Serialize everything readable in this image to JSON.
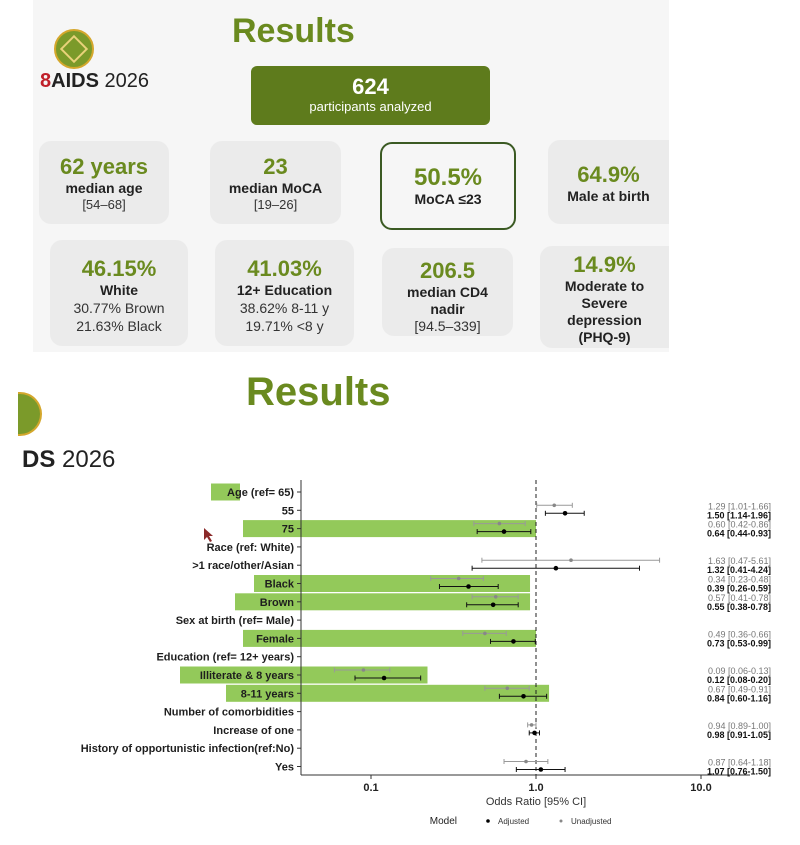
{
  "slide1": {
    "title": "Results",
    "brand": {
      "ribbon": "🎗",
      "name": "AIDS",
      "year": "2026"
    },
    "banner": {
      "value": "624",
      "label": "participants analyzed"
    },
    "cards": [
      {
        "id": "median-age",
        "value": "62 years",
        "label": "median age",
        "detail": "[54–68]"
      },
      {
        "id": "median-moca",
        "value": "23",
        "label": "median MoCA",
        "detail": "[19–26]"
      },
      {
        "id": "moca-le-23",
        "value": "50.5%",
        "label": "MoCA ≤23",
        "detail": ""
      },
      {
        "id": "male-at-birth",
        "value": "64.9%",
        "label": "Male at birth",
        "detail": ""
      },
      {
        "id": "white",
        "value": "46.15%",
        "label": "White",
        "detail": "30.77% Brown",
        "detail2": "21.63% Black"
      },
      {
        "id": "education",
        "value": "41.03%",
        "label": "12+ Education",
        "detail": "38.62% 8-11 y",
        "detail2": "19.71% <8 y"
      },
      {
        "id": "cd4-nadir",
        "value": "206.5",
        "label": "median CD4",
        "label2": "nadir",
        "detail": "[94.5–339]"
      },
      {
        "id": "depression",
        "value": "14.9%",
        "label": "Moderate to",
        "label2": "Severe",
        "label3": "depression",
        "label4": "(PHQ-9)"
      }
    ]
  },
  "slide2": {
    "title": "Results",
    "brand": {
      "name": "DS",
      "year": "2026"
    }
  },
  "chart_data": {
    "type": "scatter",
    "subtype": "forest-plot",
    "xlabel": "Odds Ratio [95% CI]",
    "xscale": "log",
    "xticks": [
      "0.1",
      "1.0",
      "10.0"
    ],
    "xlim": [
      0.035,
      14
    ],
    "reference_line": 1.0,
    "legend": {
      "title": "Model",
      "items": [
        "Adjusted",
        "Unadjusted"
      ],
      "position": "bottom"
    },
    "highlight_color": "#93c95a",
    "rows": [
      {
        "label": "Age (ref= 65)",
        "header": true,
        "highlight": true
      },
      {
        "label": "55",
        "unadjusted": {
          "or": 1.29,
          "lo": 1.01,
          "hi": 1.66,
          "text": "1.29 [1.01-1.66]"
        },
        "adjusted": {
          "or": 1.5,
          "lo": 1.14,
          "hi": 1.96,
          "text": "1.50 [1.14-1.96]"
        }
      },
      {
        "label": "75",
        "highlight": true,
        "unadjusted": {
          "or": 0.6,
          "lo": 0.42,
          "hi": 0.86,
          "text": "0.60 [0.42-0.86]"
        },
        "adjusted": {
          "or": 0.64,
          "lo": 0.44,
          "hi": 0.93,
          "text": "0.64 [0.44-0.93]"
        }
      },
      {
        "label": "Race (ref: White)",
        "header": true
      },
      {
        "label": ">1 race/other/Asian",
        "unadjusted": {
          "or": 1.63,
          "lo": 0.47,
          "hi": 5.61,
          "text": "1.63 [0.47-5.61]"
        },
        "adjusted": {
          "or": 1.32,
          "lo": 0.41,
          "hi": 4.24,
          "text": "1.32 [0.41-4.24]"
        }
      },
      {
        "label": "Black",
        "highlight": true,
        "unadjusted": {
          "or": 0.34,
          "lo": 0.23,
          "hi": 0.48,
          "text": "0.34 [0.23-0.48]"
        },
        "adjusted": {
          "or": 0.39,
          "lo": 0.26,
          "hi": 0.59,
          "text": "0.39 [0.26-0.59]"
        }
      },
      {
        "label": "Brown",
        "highlight": true,
        "unadjusted": {
          "or": 0.57,
          "lo": 0.41,
          "hi": 0.78,
          "text": "0.57 [0.41-0.78]"
        },
        "adjusted": {
          "or": 0.55,
          "lo": 0.38,
          "hi": 0.78,
          "text": "0.55 [0.38-0.78]"
        }
      },
      {
        "label": "Sex at birth (ref= Male)",
        "header": true
      },
      {
        "label": "Female",
        "highlight": true,
        "unadjusted": {
          "or": 0.49,
          "lo": 0.36,
          "hi": 0.66,
          "text": "0.49 [0.36-0.66]"
        },
        "adjusted": {
          "or": 0.73,
          "lo": 0.53,
          "hi": 0.99,
          "text": "0.73 [0.53-0.99]"
        }
      },
      {
        "label": "Education (ref= 12+ years)",
        "header": true
      },
      {
        "label": "Illiterate & 8 years",
        "highlight": true,
        "unadjusted": {
          "or": 0.09,
          "lo": 0.06,
          "hi": 0.13,
          "text": "0.09 [0.06-0.13]"
        },
        "adjusted": {
          "or": 0.12,
          "lo": 0.08,
          "hi": 0.2,
          "text": "0.12 [0.08-0.20]"
        }
      },
      {
        "label": "8-11 years",
        "highlight": true,
        "unadjusted": {
          "or": 0.67,
          "lo": 0.49,
          "hi": 0.91,
          "text": "0.67 [0.49-0.91]"
        },
        "adjusted": {
          "or": 0.84,
          "lo": 0.6,
          "hi": 1.16,
          "text": "0.84 [0.60-1.16]"
        }
      },
      {
        "label": "Number of comorbidities",
        "header": true
      },
      {
        "label": "Increase of one",
        "unadjusted": {
          "or": 0.94,
          "lo": 0.89,
          "hi": 1.0,
          "text": "0.94 [0.89-1.00]"
        },
        "adjusted": {
          "or": 0.98,
          "lo": 0.91,
          "hi": 1.05,
          "text": "0.98 [0.91-1.05]"
        }
      },
      {
        "label": "History of opportunistic infection(ref:No)",
        "header": true
      },
      {
        "label": "Yes",
        "unadjusted": {
          "or": 0.87,
          "lo": 0.64,
          "hi": 1.18,
          "text": "0.87 [0.64-1.18]"
        },
        "adjusted": {
          "or": 1.07,
          "lo": 0.76,
          "hi": 1.5,
          "text": "1.07 [0.76-1.50]"
        }
      }
    ]
  }
}
